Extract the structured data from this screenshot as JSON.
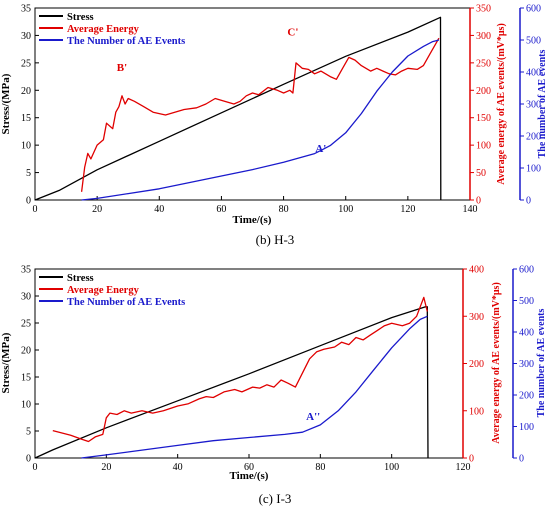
{
  "figure": {
    "caption_b": "(b) H-3",
    "caption_c": "(c) I-3"
  },
  "colors": {
    "stress": "#000000",
    "energy": "#e00000",
    "events": "#1a1acc"
  },
  "chart_data": [
    {
      "type": "line",
      "id": "H-3",
      "xlabel": "Time/(s)",
      "ylabel_left": "Stress/(MPa)",
      "ylabel_right1": "Average energy of AE events/(mV*μs)",
      "ylabel_right2": "The number of AE events",
      "xlim": [
        0,
        140
      ],
      "xticks": [
        0,
        20,
        40,
        60,
        80,
        100,
        120,
        140
      ],
      "ylim_left": [
        0,
        35
      ],
      "yticks_left": [
        0,
        5,
        10,
        15,
        20,
        25,
        30,
        35
      ],
      "ylim_right1": [
        0,
        350
      ],
      "yticks_right1": [
        0,
        50,
        100,
        150,
        200,
        250,
        300,
        350
      ],
      "ylim_right2": [
        0,
        600
      ],
      "yticks_right2": [
        0,
        100,
        200,
        300,
        400,
        500,
        600
      ],
      "legend": {
        "position": "top-left",
        "entries": [
          "Stress",
          "Average Energy",
          "The Number of AE Events"
        ]
      },
      "annotations": [
        {
          "text": "B'",
          "x": 28,
          "y": 235,
          "axis": "right1",
          "color": "energy"
        },
        {
          "text": "C'",
          "x": 83,
          "y": 300,
          "axis": "right1",
          "color": "energy"
        },
        {
          "text": "A'",
          "x": 92,
          "y": 150,
          "axis": "right2",
          "color": "events"
        }
      ],
      "series": [
        {
          "name": "Stress",
          "axis": "left",
          "color": "stress",
          "points": [
            [
              0,
              0
            ],
            [
              8,
              1.8
            ],
            [
              20,
              5.5
            ],
            [
              40,
              10.7
            ],
            [
              60,
              15.9
            ],
            [
              80,
              21.1
            ],
            [
              100,
              26.2
            ],
            [
              120,
              30.6
            ],
            [
              130.5,
              33.3
            ],
            [
              130.6,
              0
            ]
          ]
        },
        {
          "name": "Average Energy",
          "axis": "right1",
          "color": "energy",
          "points": [
            [
              15,
              15
            ],
            [
              16,
              60
            ],
            [
              17,
              85
            ],
            [
              18,
              75
            ],
            [
              20,
              100
            ],
            [
              22,
              110
            ],
            [
              23,
              140
            ],
            [
              25,
              130
            ],
            [
              26,
              160
            ],
            [
              27,
              170
            ],
            [
              28,
              190
            ],
            [
              29,
              175
            ],
            [
              30,
              185
            ],
            [
              32,
              180
            ],
            [
              35,
              170
            ],
            [
              38,
              160
            ],
            [
              42,
              155
            ],
            [
              45,
              160
            ],
            [
              48,
              165
            ],
            [
              52,
              168
            ],
            [
              55,
              175
            ],
            [
              58,
              185
            ],
            [
              61,
              180
            ],
            [
              64,
              175
            ],
            [
              66,
              180
            ],
            [
              68,
              190
            ],
            [
              70,
              195
            ],
            [
              72,
              192
            ],
            [
              75,
              205
            ],
            [
              78,
              200
            ],
            [
              80,
              195
            ],
            [
              82,
              200
            ],
            [
              83,
              195
            ],
            [
              84,
              250
            ],
            [
              86,
              240
            ],
            [
              88,
              238
            ],
            [
              90,
              230
            ],
            [
              92,
              235
            ],
            [
              95,
              225
            ],
            [
              97,
              220
            ],
            [
              99,
              240
            ],
            [
              101,
              260
            ],
            [
              103,
              255
            ],
            [
              105,
              245
            ],
            [
              108,
              235
            ],
            [
              110,
              240
            ],
            [
              112,
              235
            ],
            [
              114,
              230
            ],
            [
              116,
              228
            ],
            [
              118,
              235
            ],
            [
              120,
              240
            ],
            [
              123,
              238
            ],
            [
              125,
              245
            ],
            [
              127,
              265
            ],
            [
              129,
              285
            ],
            [
              130,
              295
            ]
          ]
        },
        {
          "name": "The Number of AE Events",
          "axis": "right2",
          "color": "events",
          "points": [
            [
              15,
              0
            ],
            [
              20,
              5
            ],
            [
              30,
              20
            ],
            [
              40,
              35
            ],
            [
              50,
              55
            ],
            [
              60,
              75
            ],
            [
              70,
              95
            ],
            [
              80,
              118
            ],
            [
              90,
              145
            ],
            [
              92,
              155
            ],
            [
              95,
              170
            ],
            [
              100,
              210
            ],
            [
              105,
              270
            ],
            [
              110,
              340
            ],
            [
              115,
              400
            ],
            [
              120,
              450
            ],
            [
              125,
              480
            ],
            [
              128,
              495
            ],
            [
              130,
              500
            ]
          ]
        }
      ]
    },
    {
      "type": "line",
      "id": "I-3",
      "xlabel": "Time/(s)",
      "ylabel_left": "Stress/(MPa)",
      "ylabel_right1": "Average energy of AE events/(mV*μs)",
      "ylabel_right2": "The number of AE events",
      "xlim": [
        0,
        120
      ],
      "xticks": [
        0,
        20,
        40,
        60,
        80,
        100,
        120
      ],
      "ylim_left": [
        0,
        35
      ],
      "yticks_left": [
        0,
        5,
        10,
        15,
        20,
        25,
        30,
        35
      ],
      "ylim_right1": [
        0,
        400
      ],
      "yticks_right1": [
        0,
        100,
        200,
        300,
        400
      ],
      "ylim_right2": [
        0,
        600
      ],
      "yticks_right2": [
        0,
        100,
        200,
        300,
        400,
        500,
        600
      ],
      "legend": {
        "position": "top-left",
        "entries": [
          "Stress",
          "Average Energy",
          "The Number of AE Events"
        ]
      },
      "annotations": [
        {
          "text": "A''",
          "x": 78,
          "y": 120,
          "axis": "right2",
          "color": "events"
        }
      ],
      "series": [
        {
          "name": "Stress",
          "axis": "left",
          "color": "stress",
          "points": [
            [
              0,
              0
            ],
            [
              5,
              1.5
            ],
            [
              20,
              5.6
            ],
            [
              40,
              10.6
            ],
            [
              60,
              15.6
            ],
            [
              80,
              20.8
            ],
            [
              100,
              26.0
            ],
            [
              109.5,
              28
            ],
            [
              110,
              28
            ],
            [
              110.2,
              0
            ]
          ]
        },
        {
          "name": "Average Energy",
          "axis": "right1",
          "color": "energy",
          "points": [
            [
              5,
              58
            ],
            [
              10,
              48
            ],
            [
              13,
              40
            ],
            [
              15,
              35
            ],
            [
              17,
              45
            ],
            [
              19,
              50
            ],
            [
              20,
              85
            ],
            [
              21,
              95
            ],
            [
              23,
              92
            ],
            [
              25,
              100
            ],
            [
              27,
              95
            ],
            [
              30,
              100
            ],
            [
              33,
              95
            ],
            [
              36,
              100
            ],
            [
              40,
              110
            ],
            [
              43,
              115
            ],
            [
              46,
              125
            ],
            [
              48,
              130
            ],
            [
              50,
              128
            ],
            [
              53,
              140
            ],
            [
              56,
              145
            ],
            [
              58,
              140
            ],
            [
              61,
              150
            ],
            [
              63,
              148
            ],
            [
              65,
              155
            ],
            [
              67,
              150
            ],
            [
              69,
              165
            ],
            [
              71,
              158
            ],
            [
              73,
              150
            ],
            [
              75,
              180
            ],
            [
              77,
              210
            ],
            [
              79,
              225
            ],
            [
              81,
              230
            ],
            [
              84,
              235
            ],
            [
              86,
              245
            ],
            [
              88,
              240
            ],
            [
              90,
              255
            ],
            [
              92,
              250
            ],
            [
              94,
              260
            ],
            [
              96,
              270
            ],
            [
              98,
              280
            ],
            [
              100,
              285
            ],
            [
              103,
              280
            ],
            [
              105,
              285
            ],
            [
              107,
              300
            ],
            [
              108,
              320
            ],
            [
              109,
              340
            ],
            [
              110,
              310
            ]
          ]
        },
        {
          "name": "The Number of AE Events",
          "axis": "right2",
          "color": "events",
          "points": [
            [
              13,
              0
            ],
            [
              20,
              10
            ],
            [
              30,
              25
            ],
            [
              40,
              40
            ],
            [
              50,
              55
            ],
            [
              60,
              65
            ],
            [
              70,
              75
            ],
            [
              75,
              82
            ],
            [
              80,
              105
            ],
            [
              85,
              150
            ],
            [
              90,
              210
            ],
            [
              95,
              280
            ],
            [
              100,
              350
            ],
            [
              105,
              410
            ],
            [
              108,
              440
            ],
            [
              110,
              450
            ]
          ]
        }
      ]
    }
  ]
}
